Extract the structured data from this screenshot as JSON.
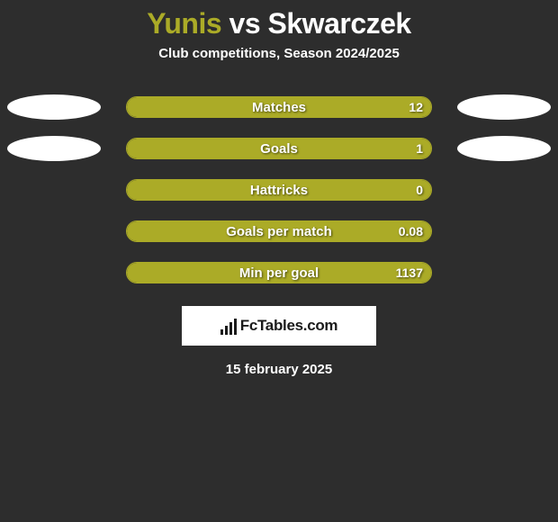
{
  "title": {
    "player1": "Yunis",
    "vs": "vs",
    "player2": "Skwarczek",
    "p1_color": "#abab27",
    "vs_color": "#ffffff",
    "p2_color": "#ffffff"
  },
  "subtitle": "Club competitions, Season 2024/2025",
  "theme": {
    "bg": "#2d2d2d",
    "accent": "#abab27",
    "text": "#ffffff",
    "ellipse_left": "#ffffff",
    "ellipse_right": "#ffffff"
  },
  "stats": [
    {
      "label": "Matches",
      "value": "12",
      "fill_pct": 100,
      "show_ellipses": true
    },
    {
      "label": "Goals",
      "value": "1",
      "fill_pct": 100,
      "show_ellipses": true
    },
    {
      "label": "Hattricks",
      "value": "0",
      "fill_pct": 100,
      "show_ellipses": false
    },
    {
      "label": "Goals per match",
      "value": "0.08",
      "fill_pct": 100,
      "show_ellipses": false
    },
    {
      "label": "Min per goal",
      "value": "1137",
      "fill_pct": 100,
      "show_ellipses": false
    }
  ],
  "badge": {
    "text": "FcTables.com"
  },
  "date": "15 february 2025"
}
